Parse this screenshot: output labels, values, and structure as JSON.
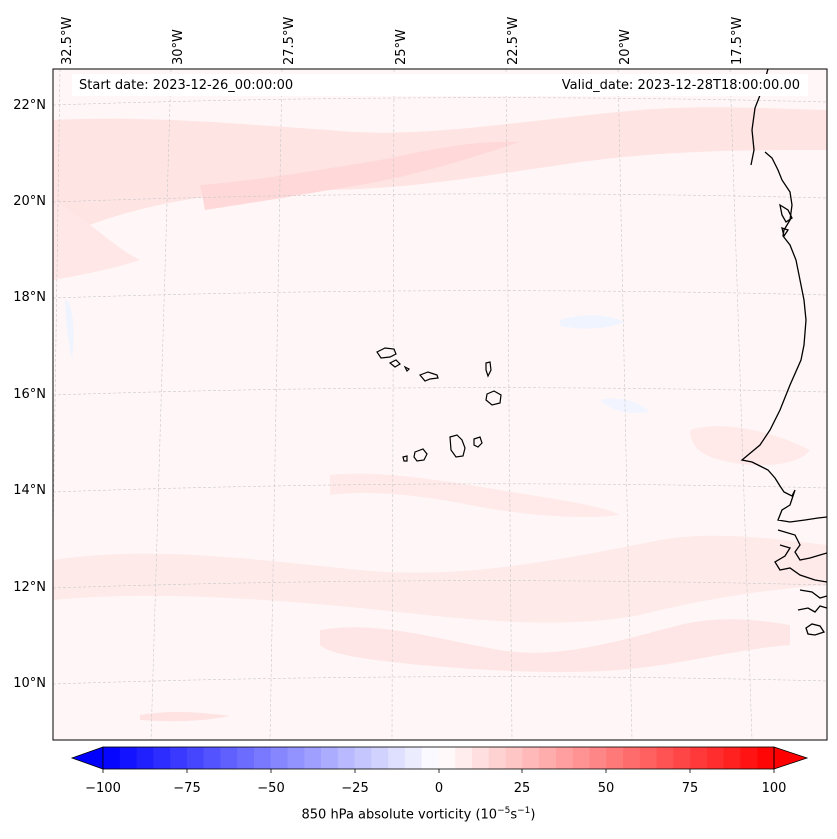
{
  "map": {
    "start_date_text": "Start date: 2023-12-26_00:00:00",
    "valid_date_text": "Valid_date: 2023-12-28T18:00:00.00",
    "lon_labels": [
      "32.5°W",
      "30°W",
      "27.5°W",
      "25°W",
      "22.5°W",
      "20°W",
      "17.5°W"
    ],
    "lat_labels": [
      "22°N",
      "20°N",
      "18°N",
      "16°N",
      "14°N",
      "12°N",
      "10°N"
    ],
    "colors": {
      "positive_shade": "#ffdede",
      "positive_light": "#ffeeee",
      "background_field": "#fff7f7",
      "negative_shade": "#f0f4ff",
      "coastline": "#000000",
      "gridline": "#c8c8c8"
    }
  },
  "colorbar": {
    "tick_labels": [
      "−100",
      "−75",
      "−50",
      "−25",
      "0",
      "25",
      "50",
      "75",
      "100"
    ],
    "title_prefix": "850 hPa absolute vorticity (10",
    "title_exp1": "−5",
    "title_mid": "s",
    "title_exp2": "−1",
    "title_suffix": ")",
    "min": -100,
    "max": 100,
    "colormap": "bwr",
    "end_color_negative": "#0000ff",
    "mid_color": "#ffffff",
    "end_color_positive": "#ff0000"
  }
}
